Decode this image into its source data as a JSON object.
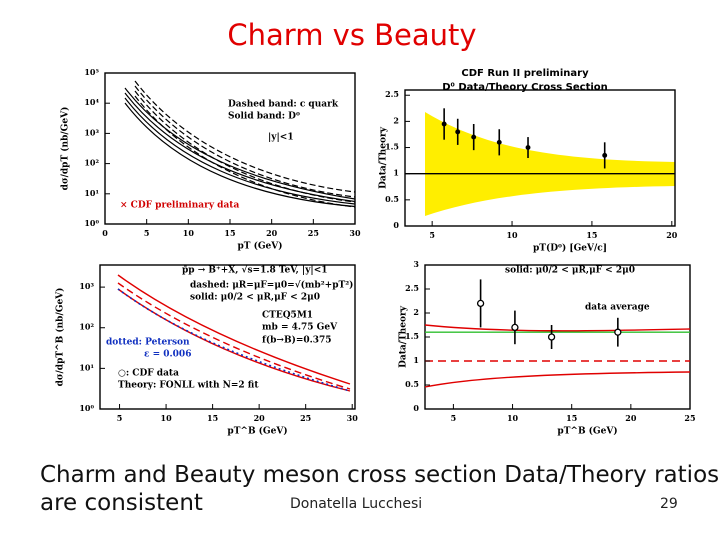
{
  "title": "Charm vs Beauty",
  "caption": [
    "Charm and Beauty meson cross section Data/Theory ratios",
    "are consistent"
  ],
  "author": "Donatella Lucchesi",
  "page": 29,
  "panels": [
    {
      "xlabel": "pT (GeV)",
      "ylabel": "dσ/dpT (nb/GeV)",
      "log": true,
      "xlim": [
        0,
        30
      ],
      "ylim": [
        1,
        100000
      ],
      "xticks": [
        0,
        5,
        10,
        15,
        20,
        25,
        30
      ],
      "yticks": [
        {
          "value": 100000,
          "label": "10⁵"
        },
        {
          "value": 10000,
          "label": "10⁴"
        },
        {
          "value": 1000,
          "label": "10³"
        },
        {
          "value": 100,
          "label": "10²"
        },
        {
          "value": 10,
          "label": "10¹"
        },
        {
          "value": 1,
          "label": "10⁰"
        }
      ],
      "notes": [
        "Dashed band: c quark",
        "Solid band: D⁰",
        "|y|<1",
        "× CDF preliminary data"
      ]
    },
    {
      "header": [
        "CDF Run II preliminary",
        "D⁰ Data/Theory Cross Section"
      ],
      "xlabel": "pT(D⁰) [GeV/c]",
      "ylabel": "Data/Theory",
      "log": false,
      "xlim": [
        3.3,
        20.2
      ],
      "ylim": [
        0,
        2.6
      ],
      "xticks": [
        5,
        10,
        15,
        20
      ],
      "yticks": [
        0,
        0.5,
        1,
        1.5,
        2,
        2.5
      ],
      "reference": 1,
      "points": {
        "x": [
          5.75,
          6.6,
          7.6,
          9.2,
          11,
          15.8
        ],
        "y": [
          1.95,
          1.8,
          1.7,
          1.6,
          1.5,
          1.35
        ],
        "err": [
          0.3,
          0.25,
          0.25,
          0.25,
          0.2,
          0.25
        ]
      }
    },
    {
      "xlabel": "pT^B (GeV)",
      "ylabel": "dσ/dpT^B (nb/GeV)",
      "log": true,
      "xlim": [
        2.9,
        30.3
      ],
      "ylim": [
        1,
        3500
      ],
      "xticks": [
        5,
        10,
        15,
        20,
        25,
        30
      ],
      "yticks": [
        {
          "value": 1000,
          "label": "10³"
        },
        {
          "value": 100,
          "label": "10²"
        },
        {
          "value": 10,
          "label": "10¹"
        },
        {
          "value": 1,
          "label": "10⁰"
        }
      ],
      "notes": [
        "p̄p → B⁺+X, √s=1.8 TeV, |y|<1",
        "dashed: μR=μF=μ0=√(mb²+pT²)",
        "solid: μ0/2 < μR,μF < 2μ0",
        "CTEQ5M1",
        "mb = 4.75 GeV",
        "f(b→B)=0.375",
        "dotted: Peterson",
        "ε = 0.006",
        "○: CDF data",
        "Theory: FONLL with N=2 fit"
      ]
    },
    {
      "xlabel": "pT^B (GeV)",
      "ylabel": "Data/Theory",
      "log": false,
      "xlim": [
        2.6,
        25
      ],
      "ylim": [
        0,
        3
      ],
      "xticks": [
        5,
        10,
        15,
        20,
        25
      ],
      "yticks": [
        0,
        0.5,
        1,
        1.5,
        2,
        2.5,
        3
      ],
      "reference": 1,
      "average": 1.6,
      "notes": [
        "solid: μ0/2 < μR,μF < 2μ0",
        "data average"
      ],
      "points": {
        "x": [
          7.3,
          10.2,
          13.3,
          18.9
        ],
        "y": [
          2.2,
          1.7,
          1.5,
          1.6
        ],
        "err": [
          0.5,
          0.35,
          0.25,
          0.3
        ]
      }
    }
  ]
}
